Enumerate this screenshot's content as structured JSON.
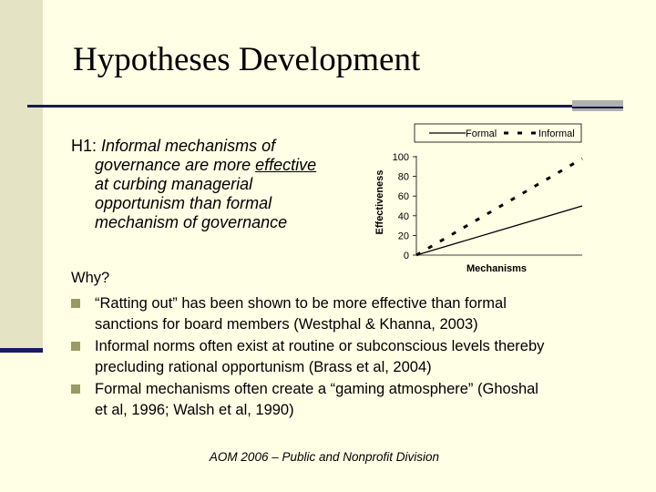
{
  "slide": {
    "title": "Hypotheses Development",
    "hypothesis": {
      "label": "H1:",
      "line1": "Informal mechanisms of",
      "line2_pre": "governance are more ",
      "line2_emph": "effective",
      "line3": "at curbing managerial",
      "line4": "opportunism than formal",
      "line5": "mechanism of governance"
    },
    "why": "Why?",
    "bullets": [
      {
        "line1": "“Ratting out” has been shown to be more effective than formal",
        "line2": "sanctions for board members (Westphal & Khanna, 2003)"
      },
      {
        "line1": "Informal norms often exist at routine or subconscious levels thereby",
        "line2": "precluding rational opportunism (Brass et al, 2004)"
      },
      {
        "line1": "Formal mechanisms often create a “gaming atmosphere” (Ghoshal",
        "line2": "et al, 1996; Walsh et al, 1990)"
      }
    ],
    "footer": "AOM 2006 – Public and Nonprofit Division",
    "colors": {
      "background": "#ffffe6",
      "accent_bar": "#e4e4c4",
      "rule": "#1a1a4a",
      "bullet": "#9a9a64"
    }
  },
  "chart_data": {
    "type": "line",
    "xlabel": "Mechanisms",
    "ylabel": "Effectiveness",
    "ylim": [
      0,
      100
    ],
    "yticks": [
      "0",
      "20",
      "40",
      "60",
      "80",
      "100"
    ],
    "x": [
      0,
      1
    ],
    "grid": false,
    "legend_placement": "top",
    "series": [
      {
        "name": "Formal",
        "style": "solid",
        "values": [
          0,
          50
        ]
      },
      {
        "name": "Informal",
        "style": "dashed",
        "values": [
          0,
          98
        ]
      }
    ]
  }
}
